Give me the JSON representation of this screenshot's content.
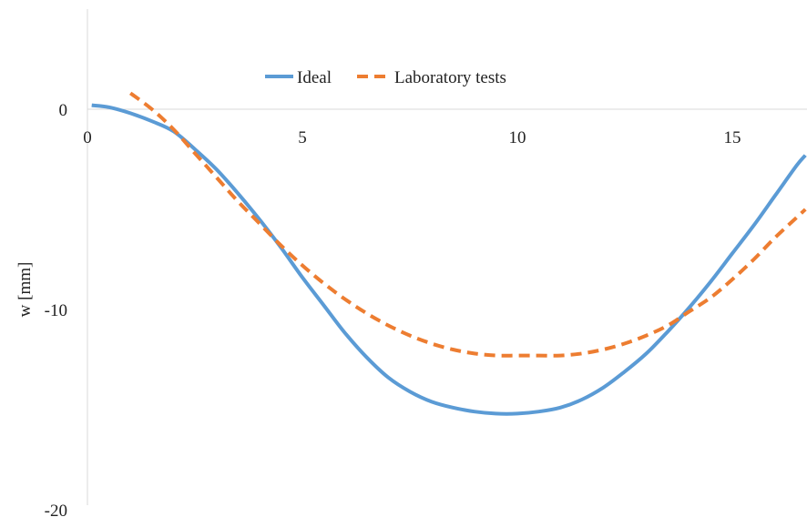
{
  "chart_data": {
    "type": "line",
    "title": "",
    "xlabel": "",
    "ylabel": "w [mm]",
    "xlim": [
      0,
      16.7
    ],
    "ylim": [
      -20,
      5
    ],
    "x_ticks": [
      0,
      5,
      10,
      15
    ],
    "y_ticks": [
      0,
      -10,
      -20
    ],
    "legend_position": "top",
    "grid": false,
    "series": [
      {
        "name": "Ideal",
        "color": "#5b9bd5",
        "style": "solid",
        "x": [
          0.1,
          0.5,
          1,
          1.5,
          2,
          2.5,
          3,
          3.5,
          4,
          4.5,
          5,
          5.5,
          6,
          6.5,
          7,
          7.5,
          8,
          8.5,
          9,
          9.5,
          10,
          10.5,
          11,
          11.5,
          12,
          12.5,
          13,
          13.5,
          14,
          14.5,
          15,
          15.5,
          16,
          16.5,
          16.7
        ],
        "y": [
          0.2,
          0.1,
          -0.2,
          -0.6,
          -1.1,
          -2.0,
          -3.0,
          -4.2,
          -5.5,
          -6.9,
          -8.4,
          -9.8,
          -11.2,
          -12.4,
          -13.4,
          -14.1,
          -14.6,
          -14.9,
          -15.1,
          -15.2,
          -15.2,
          -15.1,
          -14.9,
          -14.5,
          -13.9,
          -13.1,
          -12.2,
          -11.1,
          -9.9,
          -8.6,
          -7.2,
          -5.8,
          -4.3,
          -2.8,
          -2.3
        ]
      },
      {
        "name": "Laboratory tests",
        "color": "#ed7d31",
        "style": "dashed",
        "x": [
          1,
          1.5,
          2,
          2.5,
          3,
          3.5,
          4,
          4.5,
          5,
          5.5,
          6,
          6.5,
          7,
          7.5,
          8,
          8.5,
          9,
          9.5,
          10,
          10.5,
          11,
          11.5,
          12,
          12.5,
          13,
          13.5,
          14,
          14.5,
          15,
          15.5,
          16,
          16.5,
          16.7
        ],
        "y": [
          0.8,
          0.0,
          -1.0,
          -2.2,
          -3.4,
          -4.6,
          -5.7,
          -6.8,
          -7.8,
          -8.7,
          -9.5,
          -10.2,
          -10.8,
          -11.3,
          -11.7,
          -12.0,
          -12.2,
          -12.3,
          -12.3,
          -12.3,
          -12.3,
          -12.2,
          -12.0,
          -11.7,
          -11.3,
          -10.8,
          -10.1,
          -9.4,
          -8.5,
          -7.5,
          -6.4,
          -5.4,
          -5.0
        ]
      }
    ]
  }
}
